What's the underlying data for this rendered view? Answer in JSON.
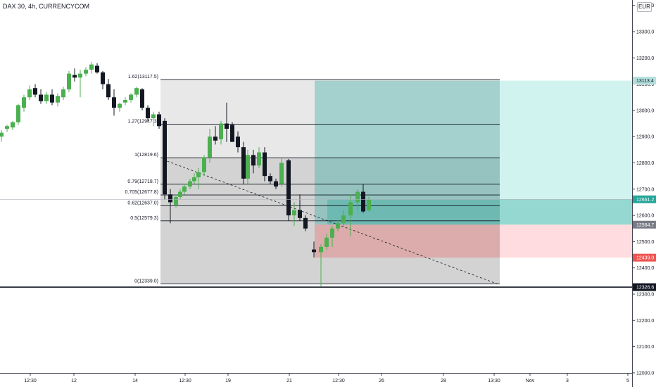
{
  "header": {
    "symbol_title": "DAX 30, 4h, CURRENCYCOM",
    "currency_label": "EUR"
  },
  "colors": {
    "up": "#4caf50",
    "down": "#131722",
    "target": "#26a69a",
    "stop": "#ef5350",
    "fib_zone": "#cfcfcf",
    "axis": "#434651"
  },
  "price_axis": {
    "ticks": [
      "13400.0",
      "13300.0",
      "13200.0",
      "13100.0",
      "13000.0",
      "12900.0",
      "12800.0",
      "12700.0",
      "12600.0",
      "12500.0",
      "12400.0",
      "12300.0",
      "12200.0",
      "12100.0",
      "12000.0"
    ],
    "labels": [
      {
        "name": "target-price-label",
        "value": 13113.4,
        "text": "13113.4",
        "bg": "#b2dfdb",
        "fg": "#131722"
      },
      {
        "name": "current-price-label",
        "value": 12661.2,
        "text": "12661.2",
        "bg": "#26a69a",
        "fg": "#ffffff"
      },
      {
        "name": "entry-price-label",
        "value": 12564.7,
        "text": "12564.7",
        "bg": "#787b86",
        "fg": "#ffffff"
      },
      {
        "name": "stop-price-label",
        "value": 12439.0,
        "text": "12439.0",
        "bg": "#ef5350",
        "fg": "#ffffff"
      },
      {
        "name": "hline-price-label",
        "value": 12326.6,
        "text": "12326.6",
        "bg": "#131722",
        "fg": "#ffffff"
      }
    ]
  },
  "time_axis": {
    "labels": [
      "12:30",
      "12",
      "14",
      "12:30",
      "19",
      "21",
      "12:30",
      "26",
      "28",
      "13:30",
      "Nov",
      "3",
      "5"
    ]
  },
  "fib_levels": [
    {
      "ratio": "1.62",
      "price": 13117.5,
      "text": "1.62(13117.5)"
    },
    {
      "ratio": "1.27",
      "price": 12947.3,
      "text": "1.27(12947.3)"
    },
    {
      "ratio": "1",
      "price": 12819.6,
      "text": "1(12819.6)"
    },
    {
      "ratio": "0.79",
      "price": 12718.7,
      "text": "0.79(12718.7)"
    },
    {
      "ratio": "0.705",
      "price": 12677.8,
      "text": "0.705(12677.8)"
    },
    {
      "ratio": "0.62",
      "price": 12637.0,
      "text": "0.62(12637.0)"
    },
    {
      "ratio": "0.5",
      "price": 12579.3,
      "text": "0.5(12579.3)"
    },
    {
      "ratio": "0",
      "price": 12339.0,
      "text": "0(12339.0)"
    }
  ],
  "position": {
    "target": 13113.4,
    "entry": 12564.7,
    "stop": 12439.0,
    "current": 12661.2
  },
  "horizontal_line": 12326.6
}
